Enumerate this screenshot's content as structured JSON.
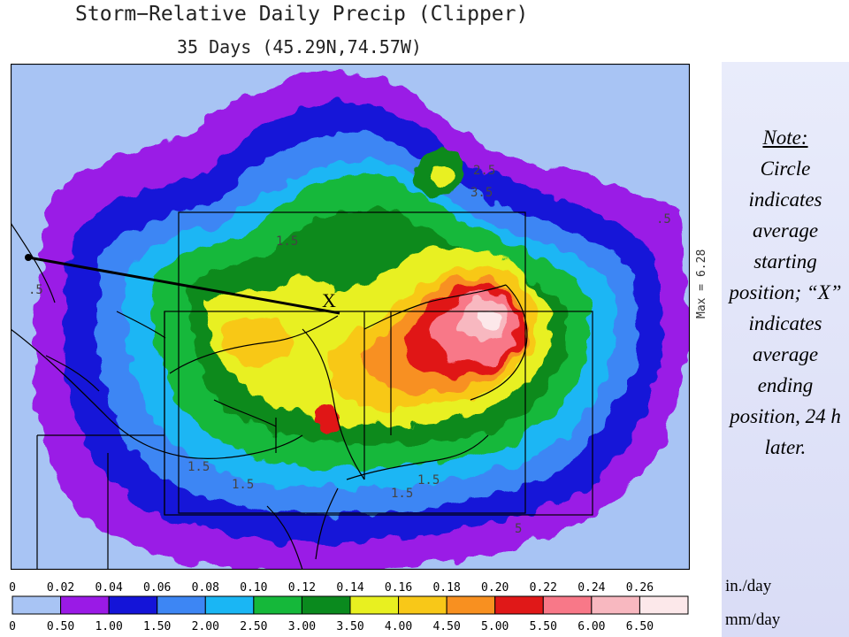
{
  "title": "Storm−Relative Daily Precip (Clipper)",
  "subtitle": "35 Days (45.29N,74.57W)",
  "max_label": "Max =  6.28",
  "note": {
    "heading": "Note:",
    "body": "Circle indicates average starting position; “X” indicates average ending position, 24 h later."
  },
  "map": {
    "x_marker": "X",
    "contour_labels": [
      "2.5",
      "3.5",
      "1.5",
      "1.5",
      "1.5",
      "1.5",
      "1.5",
      ".5",
      ".5",
      "5"
    ]
  },
  "legend": {
    "in_unit": "in./day",
    "mm_unit": "mm/day",
    "in_ticks": [
      "0",
      "0.02",
      "0.04",
      "0.06",
      "0.08",
      "0.10",
      "0.12",
      "0.14",
      "0.16",
      "0.18",
      "0.20",
      "0.22",
      "0.24",
      "0.26"
    ],
    "mm_ticks": [
      "0",
      "0.50",
      "1.00",
      "1.50",
      "2.00",
      "2.50",
      "3.00",
      "3.50",
      "4.00",
      "4.50",
      "5.00",
      "5.50",
      "6.00",
      "6.50"
    ],
    "colors": [
      "#a8c4f4",
      "#9a1ae6",
      "#1414d8",
      "#3d86f4",
      "#1ab6f4",
      "#15b83a",
      "#0a8a1e",
      "#e8f020",
      "#f8c818",
      "#f89020",
      "#e01818",
      "#f87888",
      "#f8b8c0",
      "#fce8ea"
    ]
  }
}
